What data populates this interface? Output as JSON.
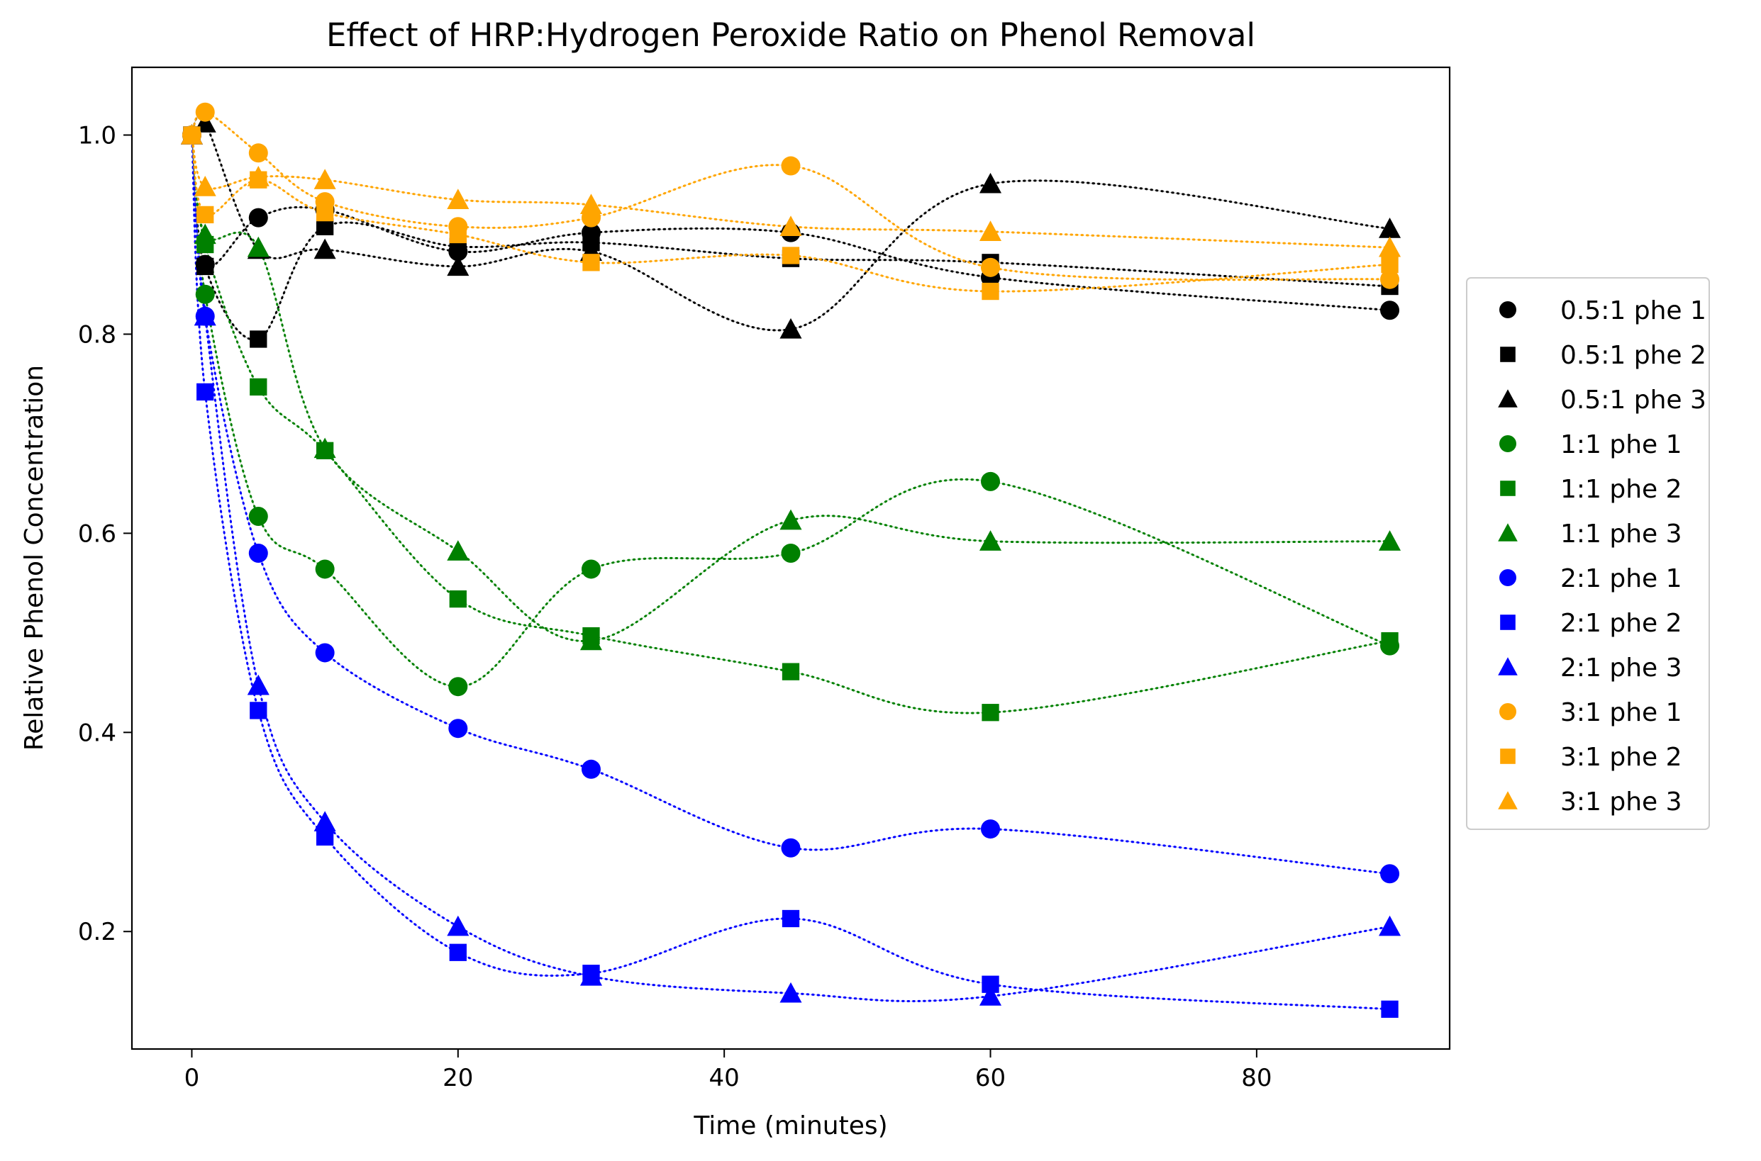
{
  "chart_data": {
    "type": "scatter",
    "title": "Effect of HRP:Hydrogen Peroxide Ratio on Phenol Removal",
    "xlabel": "Time (minutes)",
    "ylabel": "Relative Phenol Concentration",
    "xlim": [
      -4.5,
      94.5
    ],
    "ylim": [
      0.082,
      1.068
    ],
    "xticks": [
      0,
      20,
      40,
      60,
      80
    ],
    "yticks": [
      0.2,
      0.4,
      0.6,
      0.8,
      1.0
    ],
    "ytick_labels": [
      "0.2",
      "0.4",
      "0.6",
      "0.8",
      "1.0"
    ],
    "grid": false,
    "legend_position": "right, outside plot",
    "line_style": "dotted smooth curve through markers",
    "x": [
      0,
      1,
      5,
      10,
      20,
      30,
      45,
      60,
      90
    ],
    "series": [
      {
        "name": "0.5:1 phe 1",
        "color": "#000000",
        "marker": "circle",
        "values": [
          1.0,
          0.87,
          0.917,
          0.925,
          0.883,
          0.902,
          0.902,
          0.857,
          0.824
        ]
      },
      {
        "name": "0.5:1 phe 2",
        "color": "#000000",
        "marker": "square",
        "values": [
          1.0,
          0.868,
          0.795,
          0.908,
          0.888,
          0.892,
          0.876,
          0.872,
          0.848
        ]
      },
      {
        "name": "0.5:1 phe 3",
        "color": "#000000",
        "marker": "triangle",
        "values": [
          1.0,
          1.012,
          0.885,
          0.885,
          0.868,
          0.883,
          0.805,
          0.951,
          0.906
        ]
      },
      {
        "name": "1:1 phe 1",
        "color": "#008000",
        "marker": "circle",
        "values": [
          1.0,
          0.84,
          0.617,
          0.564,
          0.446,
          0.564,
          0.58,
          0.652,
          0.487
        ]
      },
      {
        "name": "1:1 phe 2",
        "color": "#008000",
        "marker": "square",
        "values": [
          1.0,
          0.89,
          0.747,
          0.683,
          0.534,
          0.497,
          0.461,
          0.42,
          0.492
        ]
      },
      {
        "name": "1:1 phe 3",
        "color": "#008000",
        "marker": "triangle",
        "values": [
          1.0,
          0.9,
          0.887,
          0.685,
          0.582,
          0.492,
          0.613,
          0.592,
          0.592
        ]
      },
      {
        "name": "2:1 phe 1",
        "color": "#0000ff",
        "marker": "circle",
        "values": [
          1.0,
          0.818,
          0.58,
          0.48,
          0.404,
          0.363,
          0.284,
          0.303,
          0.258
        ]
      },
      {
        "name": "2:1 phe 2",
        "color": "#0000ff",
        "marker": "square",
        "values": [
          1.0,
          0.742,
          0.422,
          0.295,
          0.179,
          0.158,
          0.213,
          0.147,
          0.122
        ]
      },
      {
        "name": "2:1 phe 3",
        "color": "#0000ff",
        "marker": "triangle",
        "values": [
          1.0,
          0.818,
          0.447,
          0.31,
          0.205,
          0.155,
          0.138,
          0.135,
          0.205
        ]
      },
      {
        "name": "3:1 phe 1",
        "color": "#ffa500",
        "marker": "circle",
        "values": [
          1.0,
          1.023,
          0.982,
          0.933,
          0.908,
          0.917,
          0.969,
          0.867,
          0.855
        ]
      },
      {
        "name": "3:1 phe 2",
        "color": "#ffa500",
        "marker": "square",
        "values": [
          1.0,
          0.92,
          0.955,
          0.922,
          0.9,
          0.872,
          0.879,
          0.843,
          0.87
        ]
      },
      {
        "name": "3:1 phe 3",
        "color": "#ffa500",
        "marker": "triangle",
        "values": [
          1.0,
          0.948,
          0.958,
          0.955,
          0.935,
          0.93,
          0.908,
          0.903,
          0.887
        ]
      }
    ]
  }
}
